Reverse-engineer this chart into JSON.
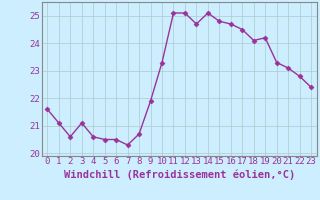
{
  "x": [
    0,
    1,
    2,
    3,
    4,
    5,
    6,
    7,
    8,
    9,
    10,
    11,
    12,
    13,
    14,
    15,
    16,
    17,
    18,
    19,
    20,
    21,
    22,
    23
  ],
  "y": [
    21.6,
    21.1,
    20.6,
    21.1,
    20.6,
    20.5,
    20.5,
    20.3,
    20.7,
    21.9,
    23.3,
    25.1,
    25.1,
    24.7,
    25.1,
    24.8,
    24.7,
    24.5,
    24.1,
    24.2,
    23.3,
    23.1,
    22.8,
    22.4
  ],
  "line_color": "#993399",
  "marker": "D",
  "markersize": 2.5,
  "linewidth": 1.0,
  "bg_color": "#cceeff",
  "grid_color": "#aacccc",
  "xlabel": "Windchill (Refroidissement éolien,°C)",
  "xlabel_fontsize": 7.5,
  "tick_fontsize": 6.5,
  "ylim": [
    19.9,
    25.5
  ],
  "xlim": [
    -0.5,
    23.5
  ],
  "yticks": [
    20,
    21,
    22,
    23,
    24,
    25
  ],
  "xticks": [
    0,
    1,
    2,
    3,
    4,
    5,
    6,
    7,
    8,
    9,
    10,
    11,
    12,
    13,
    14,
    15,
    16,
    17,
    18,
    19,
    20,
    21,
    22,
    23
  ],
  "spine_color": "#888888",
  "xlabel_color": "#993399"
}
